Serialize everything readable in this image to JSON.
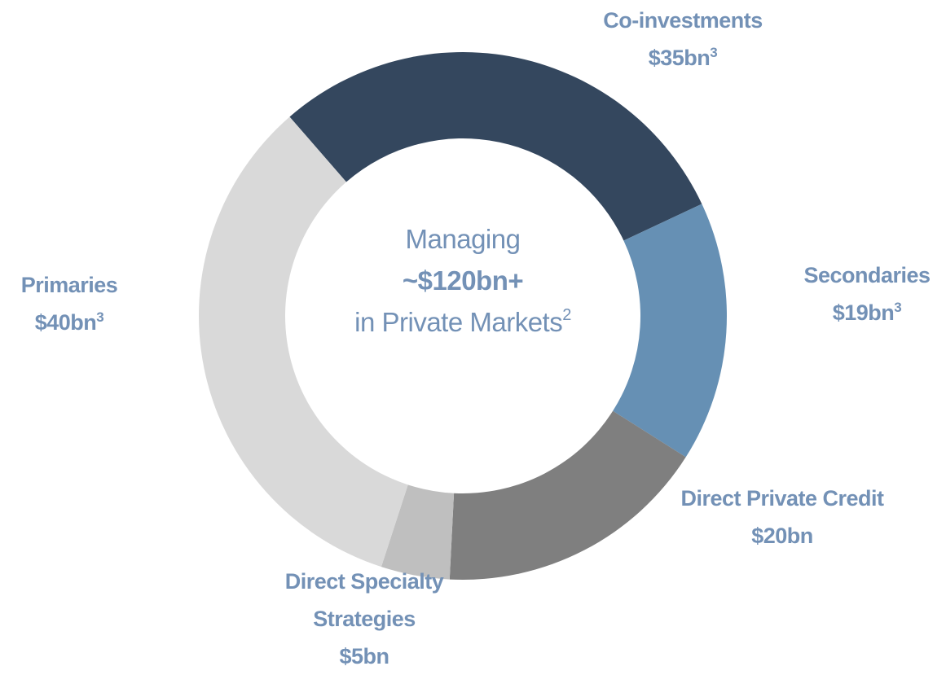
{
  "chart_data": {
    "type": "donut",
    "center_text": {
      "line1": "Managing",
      "line2": "~$120bn+",
      "line3": "in Private Markets",
      "line3_footnote": "2"
    },
    "categories": [
      "Co-investments",
      "Secondaries",
      "Direct Private Credit",
      "Direct Specialty Strategies",
      "Primaries"
    ],
    "values": [
      35,
      19,
      20,
      5,
      40
    ],
    "value_labels": [
      "$35bn",
      "$19bn",
      "$20bn",
      "$5bn",
      "$40bn"
    ],
    "footnotes": [
      "3",
      "3",
      null,
      null,
      "3"
    ],
    "colors": [
      "#34475e",
      "#6690b4",
      "#7f7f7f",
      "#bfbfbf",
      "#d9d9d9"
    ]
  }
}
